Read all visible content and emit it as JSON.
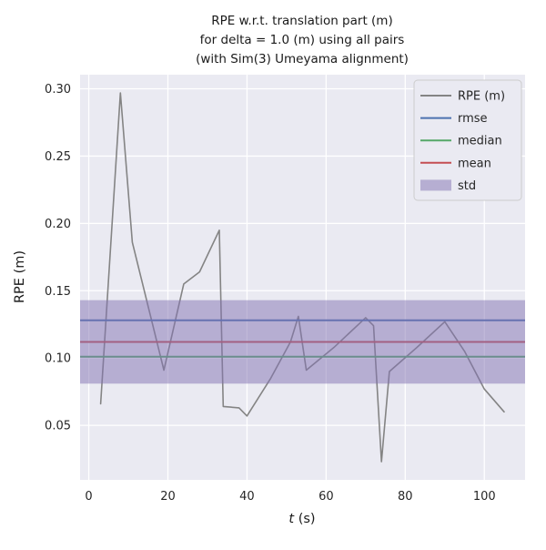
{
  "chart_data": {
    "type": "line",
    "title": "RPE w.r.t. translation part (m)\nfor delta = 1.0 (m) using all pairs\n(with Sim(3) Umeyama alignment)",
    "title_lines": [
      "RPE w.r.t. translation part (m)",
      "for delta = 1.0 (m) using all pairs",
      "(with Sim(3) Umeyama alignment)"
    ],
    "xlabel": "t (s)",
    "ylabel": "RPE (m)",
    "xlim": [
      -2.2,
      110.3
    ],
    "ylim": [
      0.0095,
      0.3105
    ],
    "xticks": [
      0,
      20,
      40,
      60,
      80,
      100
    ],
    "xtick_labels": [
      "0",
      "20",
      "40",
      "60",
      "80",
      "100"
    ],
    "yticks": [
      0.05,
      0.1,
      0.15,
      0.2,
      0.25,
      0.3
    ],
    "ytick_labels": [
      "0.05",
      "0.10",
      "0.15",
      "0.20",
      "0.25",
      "0.30"
    ],
    "grid": true,
    "plot_background": "#eaeaf2",
    "series": [
      {
        "name": "RPE (m)",
        "color": "#848484",
        "x": [
          3,
          8,
          11,
          19,
          24,
          28,
          33,
          34,
          38,
          40,
          46,
          51,
          53,
          55,
          62,
          70,
          72,
          74,
          76,
          83,
          90,
          95,
          100,
          105
        ],
        "y": [
          0.066,
          0.297,
          0.186,
          0.091,
          0.155,
          0.164,
          0.195,
          0.064,
          0.063,
          0.057,
          0.085,
          0.112,
          0.131,
          0.091,
          0.108,
          0.13,
          0.124,
          0.023,
          0.09,
          0.108,
          0.127,
          0.105,
          0.077,
          0.06
        ]
      }
    ],
    "hlines": [
      {
        "name": "rmse",
        "color": "#4c72b0",
        "y": 0.128
      },
      {
        "name": "median",
        "color": "#55a868",
        "y": 0.101
      },
      {
        "name": "mean",
        "color": "#c44e52",
        "y": 0.112
      }
    ],
    "band": {
      "name": "std",
      "color": "#8172b2",
      "alpha": 0.5,
      "y0": 0.081,
      "y1": 0.143
    },
    "legend": {
      "position": "upper right",
      "items": [
        {
          "label": "RPE (m)",
          "swatch": "line",
          "color": "#848484"
        },
        {
          "label": "rmse",
          "swatch": "line",
          "color": "#4c72b0"
        },
        {
          "label": "median",
          "swatch": "line",
          "color": "#55a868"
        },
        {
          "label": "mean",
          "swatch": "line",
          "color": "#c44e52"
        },
        {
          "label": "std",
          "swatch": "patch",
          "color": "#8172b2"
        }
      ]
    }
  }
}
